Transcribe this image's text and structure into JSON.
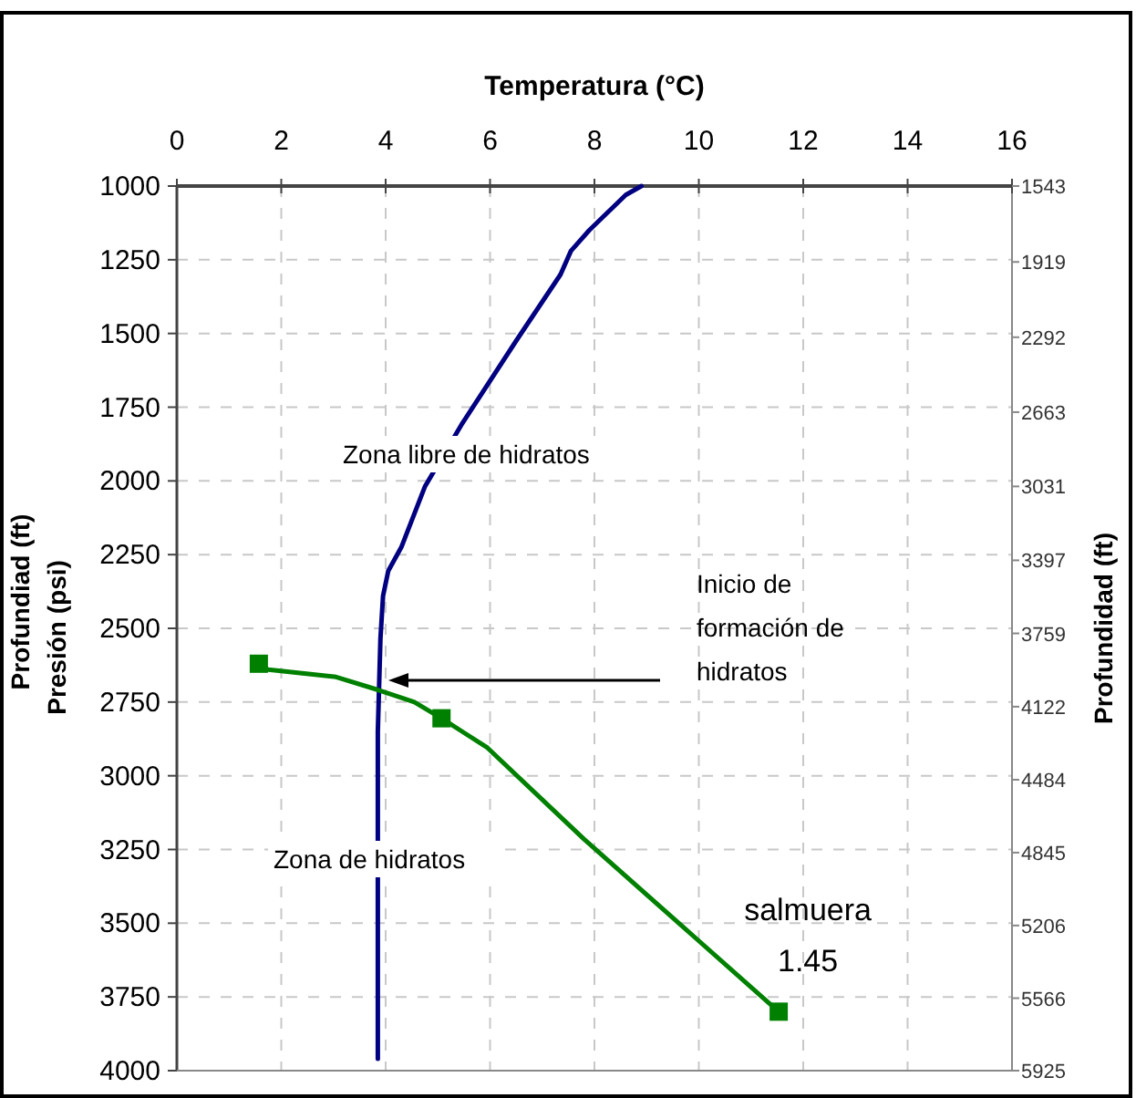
{
  "chart_data": {
    "type": "line",
    "xlabel": "Temperatura (°C)",
    "ylabel": "Presión (psi)",
    "y2label": "Profundidad (ft)",
    "xlim": [
      0,
      16
    ],
    "xticks": [
      0,
      2,
      4,
      6,
      8,
      10,
      12,
      14,
      16
    ],
    "ylim": [
      4000,
      1000
    ],
    "yticks": [
      1000,
      1250,
      1500,
      1750,
      2000,
      2250,
      2500,
      2750,
      3000,
      3250,
      3500,
      3750,
      4000
    ],
    "y2lim": [
      5925,
      1543
    ],
    "y2ticks": [
      1543,
      1919,
      2292,
      2663,
      3031,
      3397,
      3759,
      4122,
      4484,
      4845,
      5206,
      5566,
      5925
    ],
    "grid": true,
    "legend": false,
    "series": [
      {
        "color": "#000080",
        "marker": "none",
        "x": [
          8.9,
          8.6,
          7.9,
          7.55,
          7.35,
          6.5,
          5.45,
          4.75,
          4.3,
          4.05,
          3.95,
          3.9,
          3.85,
          3.85
        ],
        "values": [
          1000,
          1030,
          1150,
          1220,
          1300,
          1525,
          1810,
          2020,
          2225,
          2305,
          2390,
          2535,
          2850,
          3960
        ]
      },
      {
        "color": "#008000",
        "marker": "none",
        "x": [
          1.57,
          1.75,
          3.05,
          3.84,
          4.55,
          5.07,
          5.95,
          7.8,
          11.53
        ],
        "values": [
          2620,
          2640,
          2665,
          2708,
          2750,
          2805,
          2905,
          3215,
          3800
        ]
      },
      {
        "type": "scatter",
        "name": "salmuera 1.45",
        "color": "#008000",
        "marker": "square",
        "x": [
          1.57,
          5.07,
          11.53
        ],
        "values": [
          2620,
          2805,
          3800
        ]
      }
    ],
    "annotations": [
      "Zona libre de hidratos",
      "Zona de hidratos",
      "Inicio de formación de hidratos",
      "Profundiad (ft)"
    ]
  }
}
